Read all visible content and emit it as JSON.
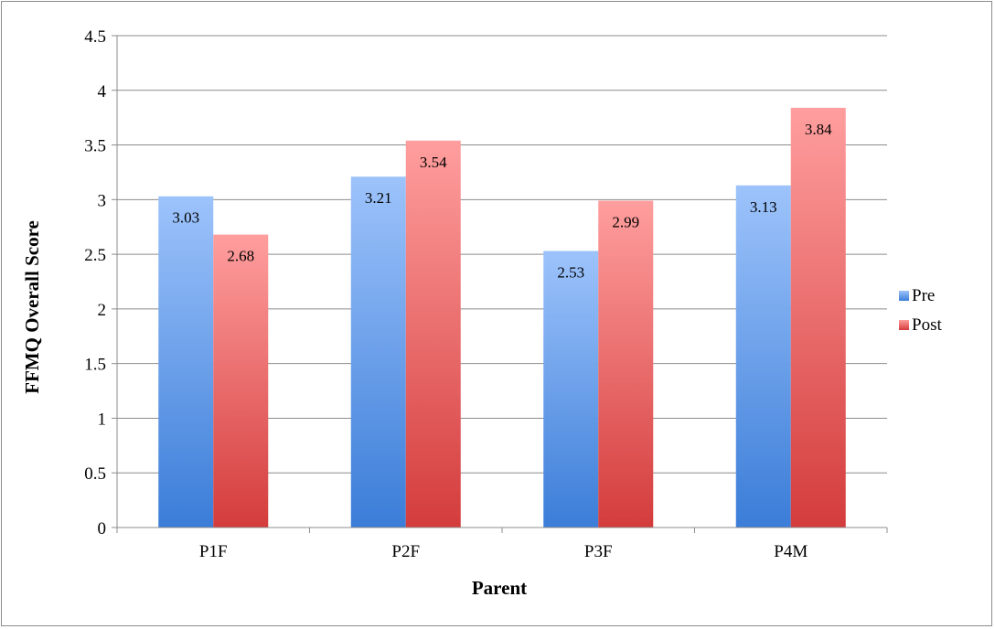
{
  "chart_data": {
    "type": "bar",
    "title": "",
    "xlabel": "Parent",
    "ylabel": "FFMQ Overall Score",
    "categories": [
      "P1F",
      "P2F",
      "P3F",
      "P4M"
    ],
    "series": [
      {
        "name": "Pre",
        "values": [
          3.03,
          3.21,
          2.53,
          3.13
        ],
        "labels": [
          "3.03",
          "3.21",
          "2.53",
          "3.13"
        ],
        "color_top": "#9dc3fb",
        "color_bottom": "#3b7dd8"
      },
      {
        "name": "Post",
        "values": [
          2.68,
          3.54,
          2.99,
          3.84
        ],
        "labels": [
          "2.68",
          "3.54",
          "2.99",
          "3.84"
        ],
        "color_top": "#ff9e9e",
        "color_bottom": "#d43c3c"
      }
    ],
    "ylim": [
      0,
      4.5
    ],
    "yticks": [
      0,
      0.5,
      1,
      1.5,
      2,
      2.5,
      3,
      3.5,
      4,
      4.5
    ],
    "ytick_labels": [
      "0",
      "0.5",
      "1",
      "1.5",
      "2",
      "2.5",
      "3",
      "3.5",
      "4",
      "4.5"
    ],
    "grid": true,
    "legend_position": "right"
  }
}
